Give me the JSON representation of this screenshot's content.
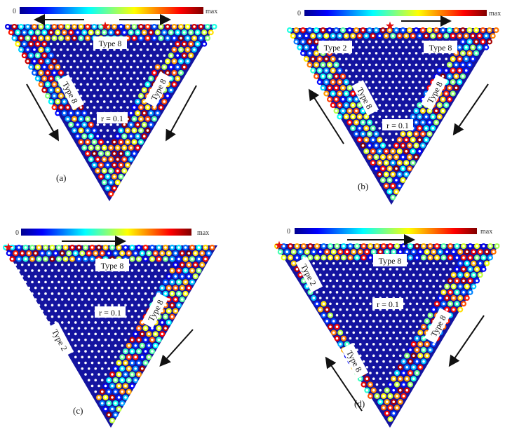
{
  "colorbar": {
    "min_label": "0",
    "max_label": "max",
    "colormap": "jet"
  },
  "panels": [
    {
      "id": "a",
      "panel_label": "(a)",
      "labels": [
        "Type 8",
        "Type 8",
        "Type 8"
      ],
      "radius_label": "r = 0.1"
    },
    {
      "id": "b",
      "panel_label": "(b)",
      "labels": [
        "Type 2",
        "Type 8",
        "Type 8",
        "Type 8"
      ],
      "radius_label": "r = 0.1"
    },
    {
      "id": "c",
      "panel_label": "(c)",
      "labels": [
        "Type 8",
        "Type 2",
        "Type 8"
      ],
      "radius_label": "r = 0.1"
    },
    {
      "id": "d",
      "panel_label": "(d)",
      "labels": [
        "Type 8",
        "Type 2",
        "Type 8",
        "Type 8"
      ],
      "radius_label": "r = 0.1"
    }
  ],
  "colors": {
    "bulk": "#1414a0",
    "source_star": "#e01010",
    "arrow": "#111111"
  }
}
